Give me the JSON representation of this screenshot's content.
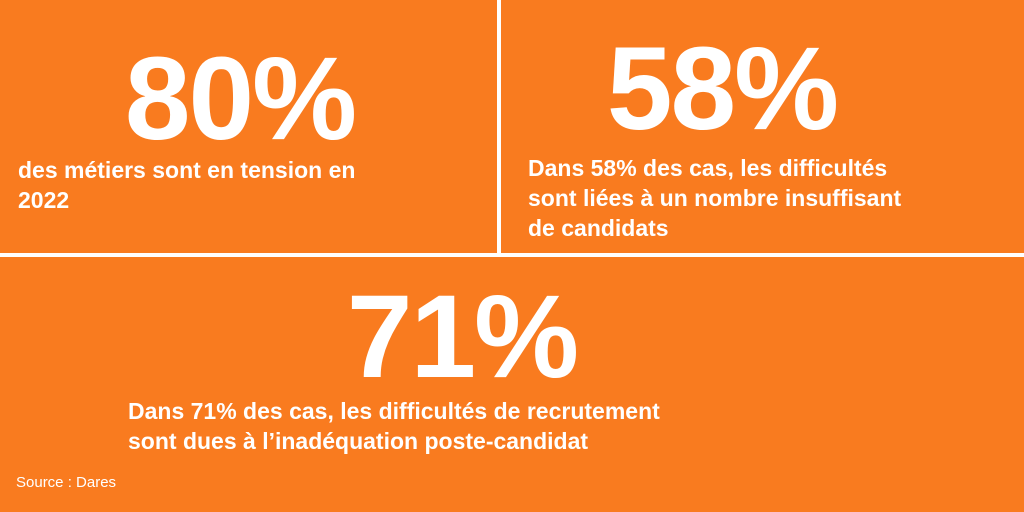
{
  "stats": [
    {
      "number": "80%",
      "lines": [
        "des métiers sont en tension en",
        "2022"
      ]
    },
    {
      "number": "58%",
      "lines": [
        "Dans 58% des cas, les difficultés",
        "sont liées à un nombre insuffisant",
        "de candidats"
      ]
    },
    {
      "number": "71%",
      "lines": [
        "Dans 71% des cas, les difficultés de recrutement",
        "sont dues à l’inadéquation poste-candidat"
      ]
    }
  ],
  "source": "Source : Dares"
}
